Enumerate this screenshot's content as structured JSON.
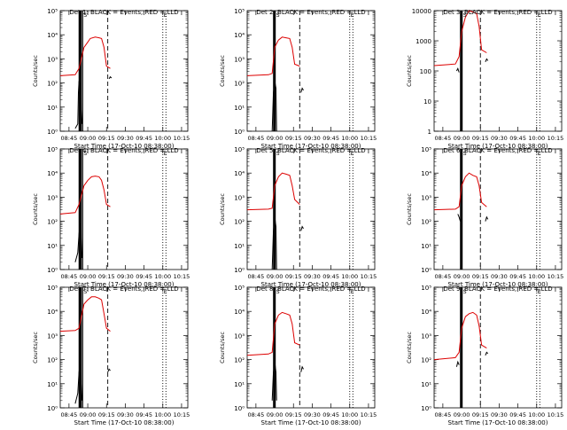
{
  "figure": {
    "xlabel": "Start Time (17-Oct-10 08:38:00)",
    "ylabel": "Counts/sec",
    "xtick_labels": [
      "08:45",
      "09:00",
      "09:15",
      "09:30",
      "09:45",
      "10:00",
      "10:15"
    ],
    "series_colors": {
      "events": "#000000",
      "lld": "#dd0000"
    }
  },
  "chart_data": [
    {
      "type": "line",
      "title": "Det 1: BLACK = Events, RED = LLD",
      "marker_labels": [
        "S",
        "E"
      ],
      "y_scale": "log",
      "ylim": [
        1,
        100000
      ],
      "ytick_labels": [
        "10⁰",
        "10¹",
        "10²",
        "10³",
        "10⁴",
        "10⁵"
      ],
      "xlim": [
        "08:38",
        "10:20"
      ],
      "events": [
        [
          "08:50",
          1.3
        ],
        [
          "08:52",
          2.0
        ],
        [
          "08:52.5",
          40
        ],
        [
          "08:53",
          120
        ],
        [
          "08:54",
          60
        ],
        [
          "08:55",
          8
        ],
        [
          "08:55.5",
          2
        ]
      ],
      "lld": [
        [
          "08:38",
          200
        ],
        [
          "08:50",
          220
        ],
        [
          "08:53",
          400
        ],
        [
          "08:57",
          3000
        ],
        [
          "09:00",
          5000
        ],
        [
          "09:02",
          7000
        ],
        [
          "09:06",
          8000
        ],
        [
          "09:09",
          7500
        ],
        [
          "09:11",
          7000
        ],
        [
          "09:13",
          3000
        ],
        [
          "09:15",
          500
        ],
        [
          "09:18",
          400
        ]
      ],
      "lines": {
        "solid": [
          "08:53",
          "08:53.5",
          "08:54",
          "08:54.5",
          "08:55",
          "08:56"
        ],
        "dashed": [
          "09:16"
        ],
        "dotted": [
          "10:00",
          "10:02.5"
        ]
      },
      "events_after": [
        [
          "09:17",
          150
        ],
        [
          "09:18",
          180
        ],
        [
          "09:19",
          160
        ]
      ]
    },
    {
      "type": "line",
      "title": "Det 2: BLACK = Events, RED = LLD",
      "marker_labels": [
        "S",
        "E"
      ],
      "y_scale": "log",
      "ylim": [
        1,
        100000
      ],
      "ytick_labels": [
        "10⁰",
        "10¹",
        "10²",
        "10³",
        "10⁴",
        "10⁵"
      ],
      "xlim": [
        "08:38",
        "10:20"
      ],
      "events": [
        [
          "08:58",
          1
        ],
        [
          "08:59",
          40
        ],
        [
          "09:00",
          120
        ],
        [
          "09:01",
          60
        ],
        [
          "09:01.5",
          1
        ]
      ],
      "lld": [
        [
          "08:38",
          200
        ],
        [
          "08:55",
          220
        ],
        [
          "08:58",
          250
        ],
        [
          "09:00",
          3000
        ],
        [
          "09:03",
          6000
        ],
        [
          "09:06",
          8000
        ],
        [
          "09:09",
          7500
        ],
        [
          "09:12",
          7000
        ],
        [
          "09:14",
          3000
        ],
        [
          "09:16",
          600
        ],
        [
          "09:20",
          500
        ]
      ],
      "lines": {
        "solid": [
          "08:59",
          "08:59.5",
          "09:00",
          "09:00.5"
        ],
        "dashed": [
          "09:20"
        ],
        "dotted": [
          "10:00",
          "10:02.5"
        ]
      },
      "events_after": [
        [
          "09:21",
          40
        ],
        [
          "09:22",
          60
        ],
        [
          "09:23",
          50
        ]
      ]
    },
    {
      "type": "line",
      "title": "Det 3: BLACK = Events, RED = LLD",
      "marker_labels": [
        "S",
        "E"
      ],
      "y_scale": "log",
      "ylim": [
        1,
        10000
      ],
      "ytick_labels": [
        "1",
        "10",
        "100",
        "1000",
        "10000"
      ],
      "xlim": [
        "08:38",
        "10:20"
      ],
      "events": [
        [
          "08:56",
          100
        ],
        [
          "08:57",
          120
        ],
        [
          "08:58",
          90
        ]
      ],
      "lld": [
        [
          "08:38",
          150
        ],
        [
          "08:55",
          170
        ],
        [
          "08:58",
          300
        ],
        [
          "09:00",
          2000
        ],
        [
          "09:03",
          6000
        ],
        [
          "09:06",
          10000
        ],
        [
          "09:09",
          9000
        ],
        [
          "09:12",
          8000
        ],
        [
          "09:14",
          3000
        ],
        [
          "09:16",
          500
        ],
        [
          "09:20",
          400
        ]
      ],
      "lines": {
        "solid": [
          "08:59",
          "08:59.5",
          "09:00",
          "09:00.5"
        ],
        "dashed": [
          "09:15"
        ],
        "dotted": [
          "10:00",
          "10:02.5"
        ]
      },
      "events_after": [
        [
          "09:19",
          200
        ],
        [
          "09:20",
          250
        ],
        [
          "09:21",
          220
        ]
      ]
    },
    {
      "type": "line",
      "title": "Det 4: BLACK = Events, RED = LLD",
      "marker_labels": [
        "S",
        "E"
      ],
      "y_scale": "log",
      "ylim": [
        1,
        100000
      ],
      "ytick_labels": [
        "10⁰",
        "10¹",
        "10²",
        "10³",
        "10⁴",
        "10⁵"
      ],
      "xlim": [
        "08:38",
        "10:20"
      ],
      "events": [
        [
          "08:50",
          2
        ],
        [
          "08:52",
          5
        ],
        [
          "08:53",
          30
        ],
        [
          "08:54",
          80
        ],
        [
          "08:55",
          20
        ],
        [
          "08:55.5",
          3
        ]
      ],
      "lld": [
        [
          "08:38",
          200
        ],
        [
          "08:50",
          230
        ],
        [
          "08:53",
          500
        ],
        [
          "08:57",
          3000
        ],
        [
          "09:00",
          5000
        ],
        [
          "09:03",
          7000
        ],
        [
          "09:06",
          7500
        ],
        [
          "09:09",
          7000
        ],
        [
          "09:11",
          5000
        ],
        [
          "09:13",
          2000
        ],
        [
          "09:15",
          500
        ],
        [
          "09:18",
          400
        ]
      ],
      "lines": {
        "solid": [
          "08:53",
          "08:53.5",
          "08:54",
          "08:54.5",
          "08:55",
          "08:56"
        ],
        "dashed": [
          "09:16"
        ],
        "dotted": [
          "10:00",
          "10:02.5"
        ]
      },
      "events_after": []
    },
    {
      "type": "line",
      "title": "Det 5: BLACK = Events, RED = LLD",
      "marker_labels": [
        "S",
        "E"
      ],
      "y_scale": "log",
      "ylim": [
        1,
        100000
      ],
      "ytick_labels": [
        "10⁰",
        "10¹",
        "10²",
        "10³",
        "10⁴",
        "10⁵"
      ],
      "xlim": [
        "08:38",
        "10:20"
      ],
      "events": [
        [
          "08:58",
          1
        ],
        [
          "08:59",
          40
        ],
        [
          "09:00",
          150
        ],
        [
          "09:01",
          60
        ],
        [
          "09:01.5",
          1
        ]
      ],
      "lld": [
        [
          "08:38",
          300
        ],
        [
          "08:55",
          320
        ],
        [
          "08:58",
          350
        ],
        [
          "09:00",
          3000
        ],
        [
          "09:03",
          7000
        ],
        [
          "09:06",
          10000
        ],
        [
          "09:09",
          9000
        ],
        [
          "09:12",
          8000
        ],
        [
          "09:14",
          3000
        ],
        [
          "09:16",
          800
        ],
        [
          "09:20",
          500
        ]
      ],
      "lines": {
        "solid": [
          "08:59",
          "08:59.5",
          "09:00",
          "09:00.5"
        ],
        "dashed": [
          "09:20"
        ],
        "dotted": [
          "10:00",
          "10:02.5"
        ]
      },
      "events_after": [
        [
          "09:21",
          40
        ],
        [
          "09:22",
          60
        ],
        [
          "09:23",
          50
        ]
      ]
    },
    {
      "type": "line",
      "title": "Det 6: BLACK = Events, RED = LLD",
      "marker_labels": [
        "S",
        "E"
      ],
      "y_scale": "log",
      "ylim": [
        1,
        100000
      ],
      "ytick_labels": [
        "10⁰",
        "10¹",
        "10²",
        "10³",
        "10⁴",
        "10⁵"
      ],
      "xlim": [
        "08:38",
        "10:20"
      ],
      "events": [
        [
          "08:57",
          200
        ],
        [
          "08:58",
          150
        ],
        [
          "08:59",
          100
        ]
      ],
      "lld": [
        [
          "08:38",
          300
        ],
        [
          "08:55",
          320
        ],
        [
          "08:58",
          400
        ],
        [
          "09:00",
          3000
        ],
        [
          "09:03",
          7000
        ],
        [
          "09:06",
          10000
        ],
        [
          "09:09",
          8000
        ],
        [
          "09:12",
          7000
        ],
        [
          "09:14",
          3000
        ],
        [
          "09:16",
          600
        ],
        [
          "09:20",
          400
        ]
      ],
      "lines": {
        "solid": [
          "08:59",
          "08:59.5",
          "09:00",
          "09:00.5"
        ],
        "dashed": [
          "09:15"
        ],
        "dotted": [
          "10:00",
          "10:02.5"
        ]
      },
      "events_after": [
        [
          "09:19",
          100
        ],
        [
          "09:20",
          150
        ],
        [
          "09:21",
          120
        ]
      ]
    },
    {
      "type": "line",
      "title": "Det 7: BLACK = Events, RED = LLD",
      "marker_labels": [
        "S",
        "E"
      ],
      "y_scale": "log",
      "ylim": [
        1,
        100000
      ],
      "ytick_labels": [
        "10⁰",
        "10¹",
        "10²",
        "10³",
        "10⁴",
        "10⁵"
      ],
      "xlim": [
        "08:38",
        "10:20"
      ],
      "events": [
        [
          "08:50",
          1.5
        ],
        [
          "08:52",
          4
        ],
        [
          "08:53",
          30
        ],
        [
          "08:54",
          60
        ],
        [
          "08:55",
          10
        ],
        [
          "08:55.5",
          2
        ]
      ],
      "lld": [
        [
          "08:38",
          1500
        ],
        [
          "08:50",
          1600
        ],
        [
          "08:53",
          2000
        ],
        [
          "08:57",
          20000
        ],
        [
          "09:00",
          30000
        ],
        [
          "09:03",
          40000
        ],
        [
          "09:06",
          40000
        ],
        [
          "09:09",
          35000
        ],
        [
          "09:11",
          30000
        ],
        [
          "09:13",
          8000
        ],
        [
          "09:15",
          2000
        ],
        [
          "09:18",
          1500
        ]
      ],
      "lines": {
        "solid": [
          "08:53",
          "08:53.5",
          "08:54",
          "08:54.5",
          "08:55",
          "08:56"
        ],
        "dashed": [
          "09:16"
        ],
        "dotted": [
          "10:00",
          "10:02.5"
        ]
      },
      "events_after": [
        [
          "09:16",
          30
        ],
        [
          "09:17",
          40
        ],
        [
          "09:18",
          35
        ]
      ]
    },
    {
      "type": "line",
      "title": "Det 8: BLACK = Events, RED = LLD",
      "marker_labels": [
        "S",
        "E"
      ],
      "y_scale": "log",
      "ylim": [
        1,
        100000
      ],
      "ytick_labels": [
        "10⁰",
        "10¹",
        "10²",
        "10³",
        "10⁴",
        "10⁵"
      ],
      "xlim": [
        "08:38",
        "10:20"
      ],
      "events": [
        [
          "08:58",
          2
        ],
        [
          "08:59",
          30
        ],
        [
          "09:00",
          80
        ],
        [
          "09:01",
          30
        ],
        [
          "09:01.5",
          2
        ]
      ],
      "lld": [
        [
          "08:38",
          150
        ],
        [
          "08:55",
          170
        ],
        [
          "08:58",
          200
        ],
        [
          "09:00",
          3000
        ],
        [
          "09:03",
          7000
        ],
        [
          "09:06",
          9000
        ],
        [
          "09:09",
          8000
        ],
        [
          "09:12",
          7000
        ],
        [
          "09:14",
          3000
        ],
        [
          "09:16",
          500
        ],
        [
          "09:20",
          400
        ]
      ],
      "lines": {
        "solid": [
          "08:59",
          "08:59.5",
          "09:00",
          "09:00.5"
        ],
        "dashed": [
          "09:20"
        ],
        "dotted": [
          "10:00",
          "10:02.5"
        ]
      },
      "events_after": [
        [
          "09:21",
          30
        ],
        [
          "09:22",
          50
        ],
        [
          "09:23",
          40
        ]
      ]
    },
    {
      "type": "line",
      "title": "Det 9: BLACK = Events, RED = LLD",
      "marker_labels": [
        "S",
        "E"
      ],
      "y_scale": "log",
      "ylim": [
        1,
        100000
      ],
      "ytick_labels": [
        "10⁰",
        "10¹",
        "10²",
        "10³",
        "10⁴",
        "10⁵"
      ],
      "xlim": [
        "08:38",
        "10:20"
      ],
      "events": [
        [
          "08:56",
          50
        ],
        [
          "08:57",
          80
        ],
        [
          "08:58",
          60
        ]
      ],
      "lld": [
        [
          "08:38",
          100
        ],
        [
          "08:55",
          120
        ],
        [
          "08:58",
          200
        ],
        [
          "09:00",
          2000
        ],
        [
          "09:03",
          6000
        ],
        [
          "09:06",
          8000
        ],
        [
          "09:09",
          9000
        ],
        [
          "09:12",
          7000
        ],
        [
          "09:14",
          2500
        ],
        [
          "09:16",
          400
        ],
        [
          "09:20",
          300
        ]
      ],
      "lines": {
        "solid": [
          "08:59",
          "08:59.5",
          "09:00",
          "09:00.5"
        ],
        "dashed": [
          "09:15"
        ],
        "dotted": [
          "10:00",
          "10:02.5"
        ]
      },
      "events_after": [
        [
          "09:19",
          150
        ],
        [
          "09:20",
          200
        ],
        [
          "09:21",
          180
        ]
      ]
    }
  ]
}
